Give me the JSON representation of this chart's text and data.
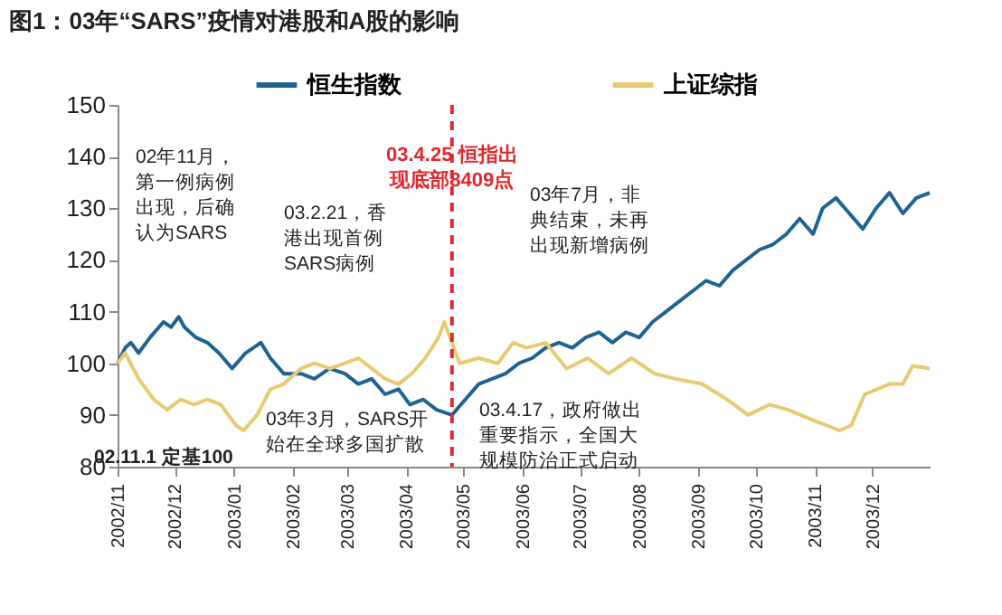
{
  "chart_data": {
    "type": "line",
    "title": "图1：03年“SARS”疫情对港股和A股的影响",
    "xlim": [
      "2002-11-01",
      "2003-12-31"
    ],
    "xticks": [
      {
        "value": "2002-11-01",
        "label": "2002/11"
      },
      {
        "value": "2002-12-01",
        "label": "2002/12"
      },
      {
        "value": "2003-01-01",
        "label": "2003/01"
      },
      {
        "value": "2003-02-01",
        "label": "2003/02"
      },
      {
        "value": "2003-03-01",
        "label": "2003/03"
      },
      {
        "value": "2003-04-01",
        "label": "2003/04"
      },
      {
        "value": "2003-05-01",
        "label": "2003/05"
      },
      {
        "value": "2003-06-01",
        "label": "2003/06"
      },
      {
        "value": "2003-07-01",
        "label": "2003/07"
      },
      {
        "value": "2003-08-01",
        "label": "2003/08"
      },
      {
        "value": "2003-09-01",
        "label": "2003/09"
      },
      {
        "value": "2003-10-01",
        "label": "2003/10"
      },
      {
        "value": "2003-11-01",
        "label": "2003/11"
      },
      {
        "value": "2003-12-01",
        "label": "2003/12"
      }
    ],
    "ylim": [
      80,
      150
    ],
    "yticks": [
      80,
      90,
      100,
      110,
      120,
      130,
      140,
      150
    ],
    "grid": false,
    "legend": "top",
    "marker": "none",
    "line_style": "solid",
    "series": [
      {
        "name": "恒生指数",
        "color": "#1f6391",
        "x": [
          "2002-11-01",
          "2002-11-05",
          "2002-11-08",
          "2002-11-12",
          "2002-11-18",
          "2002-11-25",
          "2002-11-29",
          "2002-12-03",
          "2002-12-06",
          "2002-12-12",
          "2002-12-18",
          "2002-12-24",
          "2002-12-31",
          "2003-01-07",
          "2003-01-15",
          "2003-01-20",
          "2003-01-27",
          "2003-02-05",
          "2003-02-12",
          "2003-02-20",
          "2003-02-28",
          "2003-03-07",
          "2003-03-14",
          "2003-03-21",
          "2003-03-28",
          "2003-04-03",
          "2003-04-10",
          "2003-04-17",
          "2003-04-25",
          "2003-05-02",
          "2003-05-09",
          "2003-05-16",
          "2003-05-23",
          "2003-05-30",
          "2003-06-06",
          "2003-06-13",
          "2003-06-20",
          "2003-06-27",
          "2003-07-04",
          "2003-07-11",
          "2003-07-18",
          "2003-07-25",
          "2003-08-01",
          "2003-08-08",
          "2003-08-15",
          "2003-08-22",
          "2003-08-29",
          "2003-09-05",
          "2003-09-12",
          "2003-09-19",
          "2003-09-26",
          "2003-10-03",
          "2003-10-10",
          "2003-10-17",
          "2003-10-24",
          "2003-10-31",
          "2003-11-05",
          "2003-11-12",
          "2003-11-19",
          "2003-11-26",
          "2003-12-03",
          "2003-12-10",
          "2003-12-17",
          "2003-12-24",
          "2003-12-31"
        ],
        "values": [
          100,
          103,
          104,
          102,
          105,
          108,
          107,
          109,
          107,
          105,
          104,
          102,
          99,
          102,
          104,
          101,
          98,
          98,
          97,
          99,
          98,
          96,
          97,
          94,
          95,
          92,
          93,
          91,
          90,
          93,
          96,
          97,
          98,
          100,
          101,
          103,
          104,
          103,
          105,
          106,
          104,
          106,
          105,
          108,
          110,
          112,
          114,
          116,
          115,
          118,
          120,
          122,
          123,
          125,
          128,
          125,
          130,
          132,
          129,
          126,
          130,
          133,
          129,
          132,
          133
        ]
      },
      {
        "name": "上证综指",
        "color": "#e6cb72",
        "x": [
          "2002-11-01",
          "2002-11-05",
          "2002-11-12",
          "2002-11-20",
          "2002-11-27",
          "2002-12-04",
          "2002-12-11",
          "2002-12-18",
          "2002-12-25",
          "2003-01-02",
          "2003-01-06",
          "2003-01-13",
          "2003-01-20",
          "2003-01-27",
          "2003-02-05",
          "2003-02-12",
          "2003-02-20",
          "2003-02-28",
          "2003-03-07",
          "2003-03-14",
          "2003-03-21",
          "2003-03-28",
          "2003-04-04",
          "2003-04-11",
          "2003-04-18",
          "2003-04-21",
          "2003-04-25",
          "2003-04-29",
          "2003-05-09",
          "2003-05-19",
          "2003-05-27",
          "2003-06-03",
          "2003-06-13",
          "2003-06-24",
          "2003-07-05",
          "2003-07-16",
          "2003-07-28",
          "2003-08-09",
          "2003-08-20",
          "2003-09-03",
          "2003-09-16",
          "2003-09-27",
          "2003-10-08",
          "2003-10-18",
          "2003-10-31",
          "2003-11-14",
          "2003-11-20",
          "2003-11-27",
          "2003-12-10",
          "2003-12-17",
          "2003-12-22",
          "2003-12-31"
        ],
        "values": [
          100,
          102,
          97,
          93,
          91,
          93,
          92,
          93,
          92,
          88,
          87,
          90,
          95,
          96,
          99,
          100,
          99,
          100,
          101,
          99,
          97,
          96,
          98,
          101,
          105,
          108,
          104,
          100,
          101,
          100,
          104,
          103,
          104,
          99,
          101,
          98,
          101,
          98,
          97,
          96,
          93,
          90,
          92,
          91,
          89,
          87,
          88,
          94,
          96,
          96,
          99.5,
          99
        ]
      }
    ],
    "ref_lines": [
      {
        "axis": "x",
        "value": "2003-04-25",
        "label": "03.4.25 恒指出现底部8409点",
        "color": "#e0282e",
        "line_style": "dashed"
      }
    ],
    "annotations": [
      "02年11月，第一例病例出现，后确认为SARS",
      "03.2.21，香港出现首例SARS病例",
      "03年3月，SARS开始在全球多国扩散",
      "03.4.17，政府做出重要指示，全国大规模防治正式启动",
      "03年7月，非典结束，未再出现新增病例",
      "02.11.1 定基100"
    ]
  }
}
